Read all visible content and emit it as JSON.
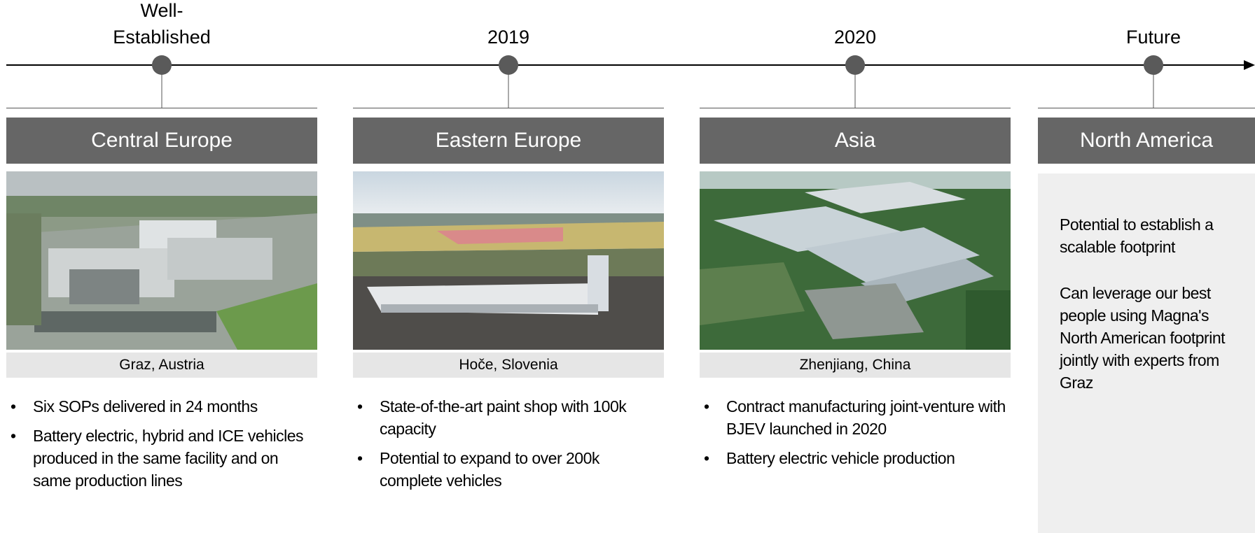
{
  "timeline": {
    "milestones": [
      "Well-Established",
      "2019",
      "2020",
      "Future"
    ]
  },
  "columns": [
    {
      "region": "Central Europe",
      "caption": "Graz, Austria",
      "bullets": [
        "Six SOPs delivered in 24 months",
        "Battery electric, hybrid and ICE vehicles produced in the same facility and on same production lines"
      ]
    },
    {
      "region": "Eastern Europe",
      "caption": "Hoče, Slovenia",
      "bullets": [
        "State-of-the-art paint shop with 100k capacity",
        "Potential to expand to over 200k complete vehicles"
      ]
    },
    {
      "region": "Asia",
      "caption": "Zhenjiang, China",
      "bullets": [
        "Contract manufacturing joint-venture with BJEV launched in 2020",
        "Battery electric vehicle production"
      ]
    },
    {
      "region": "North America",
      "paragraphs": [
        "Potential to establish a scalable footprint",
        "Can leverage our best people using Magna's North American footprint jointly with experts from Graz"
      ]
    }
  ]
}
